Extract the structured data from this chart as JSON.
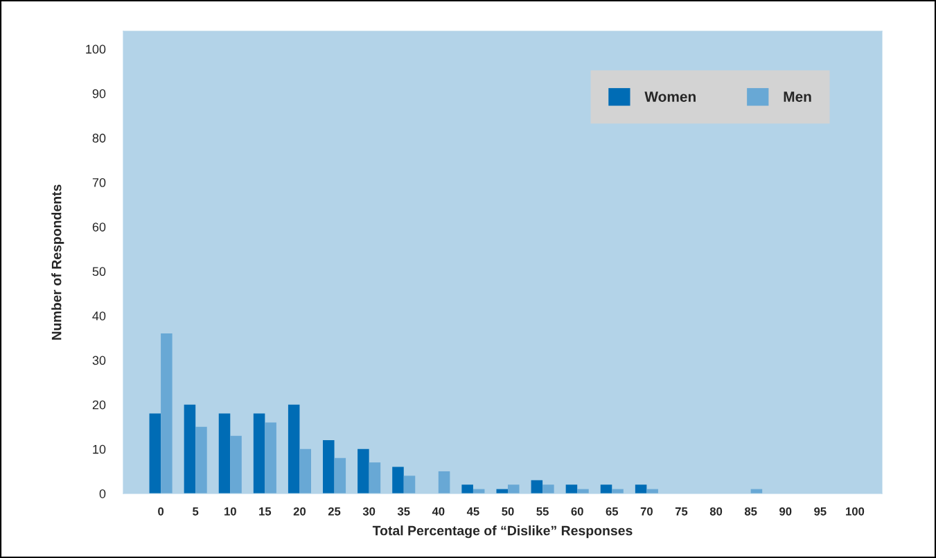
{
  "chart_data": {
    "type": "bar",
    "xlabel": "Total Percentage of “Dislike” Responses",
    "ylabel": "Number of Respondents",
    "categories": [
      "0",
      "5",
      "10",
      "15",
      "20",
      "25",
      "30",
      "35",
      "40",
      "45",
      "50",
      "55",
      "60",
      "65",
      "70",
      "75",
      "80",
      "85",
      "90",
      "95",
      "100"
    ],
    "series": [
      {
        "name": "Women",
        "color": "#006cb5",
        "values": [
          18,
          20,
          18,
          18,
          20,
          12,
          10,
          6,
          0,
          2,
          1,
          3,
          2,
          2,
          2,
          0,
          0,
          0,
          0,
          0,
          0
        ]
      },
      {
        "name": "Men",
        "color": "#68a8d5",
        "values": [
          36,
          15,
          13,
          16,
          10,
          8,
          7,
          4,
          5,
          1,
          2,
          2,
          1,
          1,
          1,
          0,
          0,
          1,
          0,
          0,
          0
        ]
      }
    ],
    "ylim": [
      0,
      104
    ],
    "yticks": [
      0,
      10,
      20,
      30,
      40,
      50,
      60,
      70,
      80,
      90,
      100
    ],
    "grid": false,
    "legend": "top right"
  }
}
